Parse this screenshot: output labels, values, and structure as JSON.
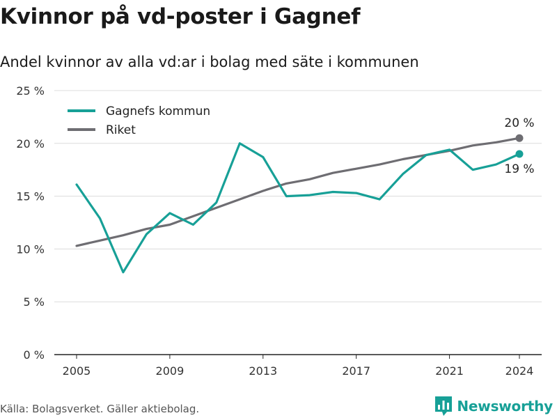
{
  "title": "Kvinnor på vd-poster i Gagnef",
  "subtitle": "Andel kvinnor av alla vd:ar i bolag med säte i kommunen",
  "source": "Källa: Bolagsverket. Gäller aktiebolag.",
  "brand": {
    "name": "Newsworthy",
    "color": "#17A097",
    "icon": "bar-chart-logo-icon"
  },
  "chart_data": {
    "type": "line",
    "title": "Kvinnor på vd-poster i Gagnef",
    "subtitle": "Andel kvinnor av alla vd:ar i bolag med säte i kommunen",
    "xlabel": "",
    "ylabel": "",
    "x": [
      2005,
      2006,
      2007,
      2008,
      2009,
      2010,
      2011,
      2012,
      2013,
      2014,
      2015,
      2016,
      2017,
      2018,
      2019,
      2020,
      2021,
      2022,
      2023,
      2024
    ],
    "xticks": [
      2005,
      2009,
      2013,
      2017,
      2021,
      2024
    ],
    "ylim": [
      0,
      25
    ],
    "yticks": [
      {
        "value": 0,
        "label": "0 %"
      },
      {
        "value": 5,
        "label": "5 %"
      },
      {
        "value": 10,
        "label": "10 %"
      },
      {
        "value": 15,
        "label": "15 %"
      },
      {
        "value": 20,
        "label": "20 %"
      },
      {
        "value": 25,
        "label": "25 %"
      }
    ],
    "grid": true,
    "legend_position": "top-left",
    "series": [
      {
        "name": "Gagnefs kommun",
        "color": "#17A097",
        "values": [
          16.1,
          12.9,
          7.8,
          11.4,
          13.4,
          12.3,
          14.4,
          20.0,
          18.7,
          15.0,
          15.1,
          15.4,
          15.3,
          14.7,
          17.1,
          18.9,
          19.4,
          17.5,
          18.0,
          19.0
        ],
        "end_label": "19 %"
      },
      {
        "name": "Riket",
        "color": "#6E6D72",
        "values": [
          10.3,
          10.8,
          11.3,
          11.9,
          12.3,
          13.1,
          13.9,
          14.7,
          15.5,
          16.2,
          16.6,
          17.2,
          17.6,
          18.0,
          18.5,
          18.9,
          19.3,
          19.8,
          20.1,
          20.5
        ],
        "end_label": "20 %"
      }
    ]
  }
}
